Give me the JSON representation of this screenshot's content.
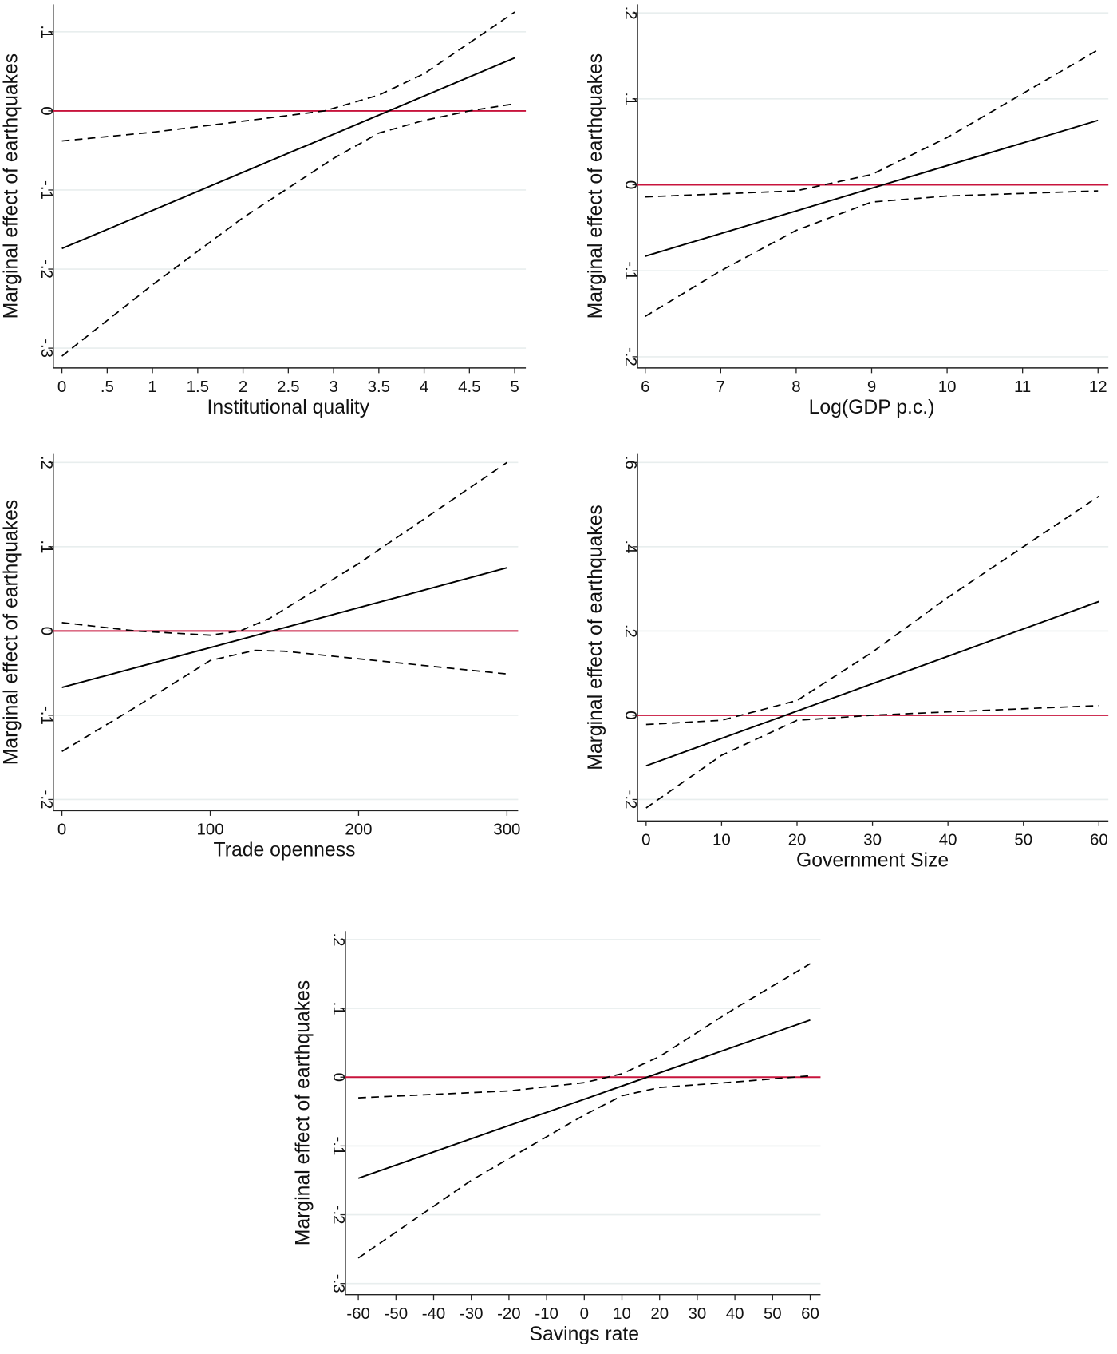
{
  "colors": {
    "zero_line": "#c8143c",
    "estimate": "#000000",
    "ci": "#000000",
    "grid": "#e8eeee"
  },
  "chart_data": [
    {
      "type": "line",
      "xlabel": "Institutional quality",
      "ylabel": "Marginal effect of earthquakes",
      "xlim": [
        0,
        5
      ],
      "ylim": [
        -0.3,
        0.1
      ],
      "xticks": [
        "0",
        ".5",
        "1",
        "1.5",
        "2",
        "2.5",
        "3",
        "3.5",
        "4",
        "4.5",
        "5"
      ],
      "xtick_values": [
        0,
        0.5,
        1,
        1.5,
        2,
        2.5,
        3,
        3.5,
        4,
        4.5,
        5
      ],
      "yticks": [
        "-.3",
        "-.2",
        "-.1",
        "0",
        ".1"
      ],
      "ytick_values": [
        -0.3,
        -0.2,
        -0.1,
        0,
        0.1
      ],
      "grid": true,
      "estimate": [
        [
          0,
          -0.174
        ],
        [
          5,
          0.067
        ]
      ],
      "upper": [
        [
          0,
          -0.038
        ],
        [
          1,
          -0.027
        ],
        [
          2,
          -0.013
        ],
        [
          2.9,
          0
        ],
        [
          3.5,
          0.02
        ],
        [
          4,
          0.047
        ],
        [
          5,
          0.125
        ]
      ],
      "lower": [
        [
          0,
          -0.31
        ],
        [
          1,
          -0.22
        ],
        [
          2,
          -0.135
        ],
        [
          3,
          -0.06
        ],
        [
          3.5,
          -0.028
        ],
        [
          4,
          -0.012
        ],
        [
          4.5,
          0
        ],
        [
          5,
          0.009
        ]
      ]
    },
    {
      "type": "line",
      "xlabel": "Log(GDP p.c.)",
      "ylabel": "Marginal effect of earthquakes",
      "xlim": [
        6,
        12
      ],
      "ylim": [
        -0.2,
        0.2
      ],
      "xticks": [
        "6",
        "7",
        "8",
        "9",
        "10",
        "11",
        "12"
      ],
      "xtick_values": [
        6,
        7,
        8,
        9,
        10,
        11,
        12
      ],
      "yticks": [
        "-.2",
        "-.1",
        "0",
        ".1",
        ".2"
      ],
      "ytick_values": [
        -0.2,
        -0.1,
        0,
        0.1,
        0.2
      ],
      "grid": true,
      "estimate": [
        [
          6,
          -0.083
        ],
        [
          12,
          0.075
        ]
      ],
      "upper": [
        [
          6,
          -0.014
        ],
        [
          8,
          -0.007
        ],
        [
          9,
          0.012
        ],
        [
          10,
          0.055
        ],
        [
          12,
          0.157
        ]
      ],
      "lower": [
        [
          6,
          -0.153
        ],
        [
          7,
          -0.1
        ],
        [
          8,
          -0.053
        ],
        [
          9,
          -0.02
        ],
        [
          10,
          -0.013
        ],
        [
          12,
          -0.007
        ]
      ]
    },
    {
      "type": "line",
      "xlabel": "Trade openness",
      "ylabel": "Marginal effect of earthquakes",
      "xlim": [
        0,
        300
      ],
      "ylim": [
        -0.2,
        0.2
      ],
      "xticks": [
        "0",
        "100",
        "200",
        "300"
      ],
      "xtick_values": [
        0,
        100,
        200,
        300
      ],
      "yticks": [
        "-.2",
        "-.1",
        "0",
        ".1",
        ".2"
      ],
      "ytick_values": [
        -0.2,
        -0.1,
        0,
        0.1,
        0.2
      ],
      "grid": true,
      "estimate": [
        [
          0,
          -0.067
        ],
        [
          300,
          0.075
        ]
      ],
      "upper": [
        [
          0,
          0.01
        ],
        [
          50,
          0.0
        ],
        [
          100,
          -0.005
        ],
        [
          120,
          0
        ],
        [
          140,
          0.015
        ],
        [
          200,
          0.08
        ],
        [
          300,
          0.2
        ]
      ],
      "lower": [
        [
          0,
          -0.143
        ],
        [
          50,
          -0.09
        ],
        [
          100,
          -0.035
        ],
        [
          130,
          -0.023
        ],
        [
          150,
          -0.024
        ],
        [
          300,
          -0.051
        ]
      ]
    },
    {
      "type": "line",
      "xlabel": "Government Size",
      "ylabel": "Marginal effect of earthquakes",
      "xlim": [
        0,
        60
      ],
      "ylim": [
        -0.2,
        0.6
      ],
      "xticks": [
        "0",
        "10",
        "20",
        "30",
        "40",
        "50",
        "60"
      ],
      "xtick_values": [
        0,
        10,
        20,
        30,
        40,
        50,
        60
      ],
      "yticks": [
        "-.2",
        "0",
        ".2",
        ".4",
        ".6"
      ],
      "ytick_values": [
        -0.2,
        0,
        0.2,
        0.4,
        0.6
      ],
      "grid": true,
      "estimate": [
        [
          0,
          -0.12
        ],
        [
          60,
          0.27
        ]
      ],
      "upper": [
        [
          0,
          -0.022
        ],
        [
          10,
          -0.012
        ],
        [
          20,
          0.035
        ],
        [
          30,
          0.15
        ],
        [
          40,
          0.28
        ],
        [
          50,
          0.4
        ],
        [
          60,
          0.52
        ]
      ],
      "lower": [
        [
          0,
          -0.22
        ],
        [
          10,
          -0.095
        ],
        [
          20,
          -0.012
        ],
        [
          30,
          0
        ],
        [
          40,
          0.008
        ],
        [
          60,
          0.023
        ]
      ]
    },
    {
      "type": "line",
      "xlabel": "Savings rate",
      "ylabel": "Marginal effect of earthquakes",
      "xlim": [
        -60,
        60
      ],
      "ylim": [
        -0.3,
        0.2
      ],
      "xticks": [
        "-60",
        "-50",
        "-40",
        "-30",
        "-20",
        "-10",
        "0",
        "10",
        "20",
        "30",
        "40",
        "50",
        "60"
      ],
      "xtick_values": [
        -60,
        -50,
        -40,
        -30,
        -20,
        -10,
        0,
        10,
        20,
        30,
        40,
        50,
        60
      ],
      "yticks": [
        "-.3",
        "-.2",
        "-.1",
        "0",
        ".1",
        ".2"
      ],
      "ytick_values": [
        -0.3,
        -0.2,
        -0.1,
        0,
        0.1,
        0.2
      ],
      "grid": true,
      "estimate": [
        [
          -60,
          -0.147
        ],
        [
          60,
          0.083
        ]
      ],
      "upper": [
        [
          -60,
          -0.03
        ],
        [
          -20,
          -0.02
        ],
        [
          0,
          -0.008
        ],
        [
          10,
          0.005
        ],
        [
          20,
          0.03
        ],
        [
          40,
          0.1
        ],
        [
          60,
          0.165
        ]
      ],
      "lower": [
        [
          -60,
          -0.263
        ],
        [
          -30,
          -0.15
        ],
        [
          0,
          -0.055
        ],
        [
          10,
          -0.027
        ],
        [
          20,
          -0.015
        ],
        [
          40,
          -0.007
        ],
        [
          60,
          0.002
        ]
      ]
    }
  ]
}
